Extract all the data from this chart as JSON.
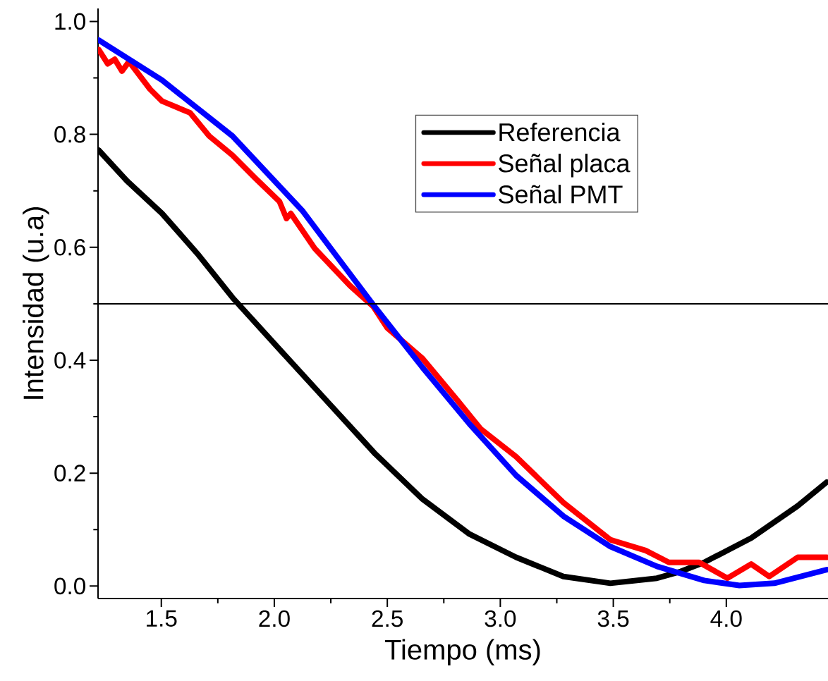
{
  "chart_data": {
    "type": "line",
    "xlabel": "Tiempo (ms)",
    "ylabel": "Intensidad (u.a)",
    "xlim": [
      1.22,
      4.45
    ],
    "ylim": [
      -0.022,
      1.023
    ],
    "xticks": [
      {
        "value": 1.5,
        "label": "1.5"
      },
      {
        "value": 2.0,
        "label": "2.0"
      },
      {
        "value": 2.5,
        "label": "2.5"
      },
      {
        "value": 3.0,
        "label": "3.0"
      },
      {
        "value": 3.5,
        "label": "3.5"
      },
      {
        "value": 4.0,
        "label": "4.0"
      }
    ],
    "yticks": [
      {
        "value": 0.0,
        "label": "0.0"
      },
      {
        "value": 0.2,
        "label": "0.2"
      },
      {
        "value": 0.4,
        "label": "0.4"
      },
      {
        "value": 0.6,
        "label": "0.6"
      },
      {
        "value": 0.8,
        "label": "0.8"
      },
      {
        "value": 1.0,
        "label": "1.0"
      }
    ],
    "legend": "top right",
    "ref_lines": [
      {
        "axis": "y",
        "value": 0.5,
        "color": "#000000"
      }
    ],
    "series": [
      {
        "name": "Referencia",
        "color": "#000000",
        "x": [
          1.223,
          1.347,
          1.503,
          1.659,
          1.815,
          2.033,
          2.241,
          2.447,
          2.656,
          2.864,
          3.07,
          3.279,
          3.487,
          3.693,
          3.799,
          3.902,
          4.11,
          4.316,
          4.444
        ],
        "values": [
          0.772,
          0.718,
          0.66,
          0.589,
          0.511,
          0.415,
          0.324,
          0.234,
          0.154,
          0.092,
          0.051,
          0.017,
          0.005,
          0.014,
          0.026,
          0.042,
          0.085,
          0.142,
          0.184
        ]
      },
      {
        "name": "Señal placa",
        "color": "#ff0000",
        "x": [
          1.223,
          1.263,
          1.294,
          1.326,
          1.357,
          1.45,
          1.503,
          1.628,
          1.712,
          1.815,
          1.917,
          2.023,
          2.054,
          2.073,
          2.179,
          2.335,
          2.438,
          2.5,
          2.656,
          2.812,
          2.914,
          3.07,
          3.279,
          3.487,
          3.643,
          3.746,
          3.88,
          4.005,
          4.11,
          4.19,
          4.316,
          4.444
        ],
        "values": [
          0.95,
          0.925,
          0.933,
          0.912,
          0.929,
          0.88,
          0.859,
          0.838,
          0.797,
          0.763,
          0.722,
          0.681,
          0.651,
          0.66,
          0.598,
          0.532,
          0.495,
          0.457,
          0.403,
          0.328,
          0.278,
          0.229,
          0.148,
          0.082,
          0.063,
          0.042,
          0.042,
          0.014,
          0.039,
          0.017,
          0.051,
          0.051
        ]
      },
      {
        "name": "Señal PMT",
        "color": "#0000ff",
        "x": [
          1.223,
          1.503,
          1.815,
          2.126,
          2.438,
          2.656,
          2.864,
          3.07,
          3.279,
          3.487,
          3.693,
          3.902,
          4.058,
          4.213,
          4.444
        ],
        "values": [
          0.967,
          0.896,
          0.797,
          0.664,
          0.498,
          0.387,
          0.287,
          0.196,
          0.124,
          0.07,
          0.035,
          0.01,
          0.001,
          0.005,
          0.029
        ]
      }
    ]
  }
}
